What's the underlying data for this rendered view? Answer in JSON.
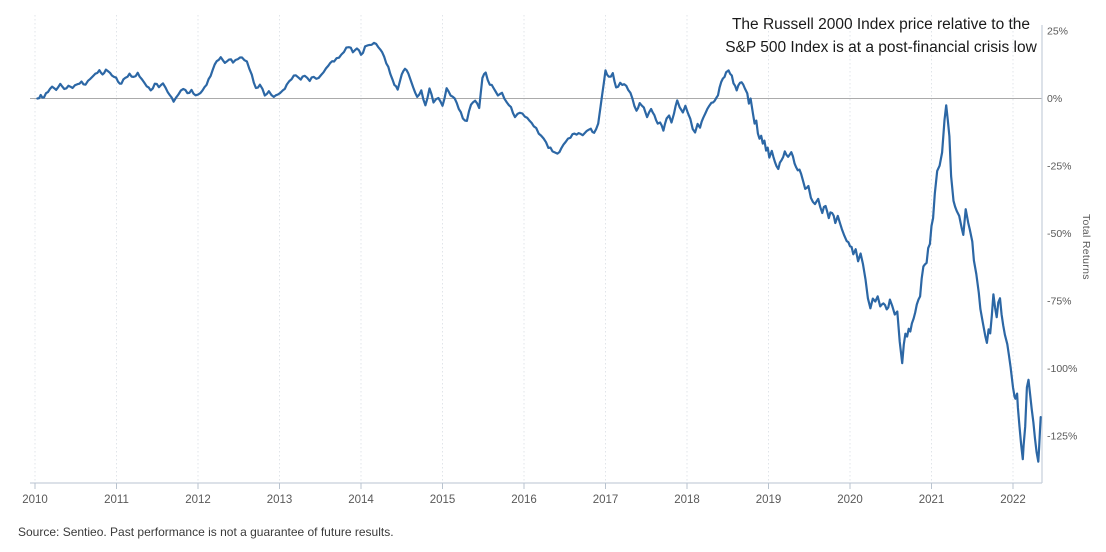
{
  "title": {
    "line1": "The Russell 2000 Index price relative to the",
    "line2": "S&P 500 Index is at a post-financial crisis low"
  },
  "source_note": "Source: Sentieo. Past performance is not a guarantee of future results.",
  "colors": {
    "line": "#2c67a5",
    "axis": "#c6cfda",
    "zero_line": "#ababab",
    "gridline": "#e0e4e9",
    "tick": "#b9c3cf",
    "axis_text": "#595959",
    "title_text": "#1a1a1a",
    "source_text": "#3a3a3a",
    "background": "#ffffff"
  },
  "chart_data": {
    "type": "line",
    "series_name": "Russell 2000 Index price relative to S&P 500 Index",
    "title": "The Russell 2000 Index price relative to the S&P 500 Index is at a post-financial crisis low",
    "xlabel": "",
    "ylabel": "Total Returns",
    "x_axis": {
      "ticks": [
        2010,
        2011,
        2012,
        2013,
        2014,
        2015,
        2016,
        2017,
        2018,
        2019,
        2020,
        2021,
        2022
      ],
      "tick_labels": [
        "2010",
        "2011",
        "2012",
        "2013",
        "2014",
        "2015",
        "2016",
        "2017",
        "2018",
        "2019",
        "2020",
        "2021",
        "2022"
      ],
      "range": [
        2009.94,
        2022.45
      ]
    },
    "y_axis": {
      "label": "Total Returns",
      "tick_values": [
        25,
        0,
        -25,
        -50,
        -75,
        -100,
        -125
      ],
      "tick_labels": [
        "25%",
        "0%",
        "-25%",
        "-50%",
        "-75%",
        "-100%",
        "-125%"
      ],
      "range": [
        -140,
        27
      ],
      "zero_line": true
    },
    "grid": {
      "vertical_dotted": true,
      "horizontal": false
    },
    "legend_position": "none",
    "points": [
      [
        2010.03,
        0.0
      ],
      [
        2010.07,
        1.3
      ],
      [
        2010.11,
        0.4
      ],
      [
        2010.16,
        2.4
      ],
      [
        2010.21,
        4.4
      ],
      [
        2010.26,
        3.2
      ],
      [
        2010.31,
        5.4
      ],
      [
        2010.36,
        3.5
      ],
      [
        2010.41,
        4.7
      ],
      [
        2010.46,
        3.9
      ],
      [
        2010.52,
        5.3
      ],
      [
        2010.57,
        6.3
      ],
      [
        2010.62,
        5.1
      ],
      [
        2010.68,
        7.3
      ],
      [
        2010.74,
        9.2
      ],
      [
        2010.79,
        10.5
      ],
      [
        2010.83,
        8.9
      ],
      [
        2010.87,
        10.7
      ],
      [
        2010.92,
        9.5
      ],
      [
        2010.97,
        8.0
      ],
      [
        2011.02,
        6.2
      ],
      [
        2011.06,
        5.5
      ],
      [
        2011.11,
        7.7
      ],
      [
        2011.16,
        9.2
      ],
      [
        2011.21,
        8.0
      ],
      [
        2011.26,
        9.5
      ],
      [
        2011.31,
        7.2
      ],
      [
        2011.37,
        4.5
      ],
      [
        2011.42,
        3.0
      ],
      [
        2011.47,
        5.5
      ],
      [
        2011.52,
        4.2
      ],
      [
        2011.57,
        5.6
      ],
      [
        2011.63,
        2.3
      ],
      [
        2011.7,
        -1.2
      ],
      [
        2011.76,
        1.5
      ],
      [
        2011.82,
        3.5
      ],
      [
        2011.87,
        2.0
      ],
      [
        2011.92,
        3.2
      ],
      [
        2011.97,
        1.2
      ],
      [
        2012.03,
        2.0
      ],
      [
        2012.08,
        4.2
      ],
      [
        2012.13,
        7.2
      ],
      [
        2012.18,
        10.6
      ],
      [
        2012.23,
        13.8
      ],
      [
        2012.28,
        15.3
      ],
      [
        2012.33,
        13.2
      ],
      [
        2012.38,
        14.4
      ],
      [
        2012.43,
        13.3
      ],
      [
        2012.49,
        14.6
      ],
      [
        2012.54,
        15.2
      ],
      [
        2012.6,
        13.7
      ],
      [
        2012.66,
        8.8
      ],
      [
        2012.71,
        3.9
      ],
      [
        2012.76,
        5.1
      ],
      [
        2012.82,
        1.1
      ],
      [
        2012.87,
        2.7
      ],
      [
        2012.93,
        0.6
      ],
      [
        2012.98,
        1.5
      ],
      [
        2013.04,
        3.0
      ],
      [
        2013.09,
        5.2
      ],
      [
        2013.15,
        7.2
      ],
      [
        2013.2,
        8.6
      ],
      [
        2013.26,
        7.0
      ],
      [
        2013.31,
        8.4
      ],
      [
        2013.37,
        6.5
      ],
      [
        2013.42,
        8.0
      ],
      [
        2013.48,
        7.6
      ],
      [
        2013.54,
        9.7
      ],
      [
        2013.6,
        12.2
      ],
      [
        2013.67,
        13.7
      ],
      [
        2013.73,
        15.1
      ],
      [
        2013.79,
        17.2
      ],
      [
        2013.85,
        19.0
      ],
      [
        2013.9,
        17.1
      ],
      [
        2013.95,
        18.5
      ],
      [
        2014.0,
        16.2
      ],
      [
        2014.05,
        19.3
      ],
      [
        2014.1,
        19.8
      ],
      [
        2014.16,
        20.6
      ],
      [
        2014.21,
        19.1
      ],
      [
        2014.26,
        17.1
      ],
      [
        2014.31,
        13.0
      ],
      [
        2014.36,
        9.1
      ],
      [
        2014.41,
        5.0
      ],
      [
        2014.45,
        3.3
      ],
      [
        2014.5,
        9.0
      ],
      [
        2014.54,
        11.0
      ],
      [
        2014.58,
        9.3
      ],
      [
        2014.64,
        4.1
      ],
      [
        2014.69,
        0.6
      ],
      [
        2014.74,
        3.0
      ],
      [
        2014.79,
        -2.5
      ],
      [
        2014.84,
        3.7
      ],
      [
        2014.89,
        -1.5
      ],
      [
        2014.95,
        0.2
      ],
      [
        2015.0,
        -2.7
      ],
      [
        2015.05,
        3.8
      ],
      [
        2015.1,
        1.1
      ],
      [
        2015.15,
        0.0
      ],
      [
        2015.2,
        -3.9
      ],
      [
        2015.25,
        -7.4
      ],
      [
        2015.3,
        -8.3
      ],
      [
        2015.35,
        -2.3
      ],
      [
        2015.4,
        -0.8
      ],
      [
        2015.45,
        -3.5
      ],
      [
        2015.49,
        7.6
      ],
      [
        2015.53,
        9.6
      ],
      [
        2015.58,
        5.1
      ],
      [
        2015.63,
        3.7
      ],
      [
        2015.68,
        1.1
      ],
      [
        2015.73,
        2.1
      ],
      [
        2015.79,
        -1.5
      ],
      [
        2015.84,
        -3.2
      ],
      [
        2015.89,
        -6.9
      ],
      [
        2015.95,
        -5.3
      ],
      [
        2016.01,
        -6.7
      ],
      [
        2016.07,
        -8.3
      ],
      [
        2016.12,
        -10.3
      ],
      [
        2016.18,
        -13.0
      ],
      [
        2016.24,
        -14.8
      ],
      [
        2016.3,
        -18.3
      ],
      [
        2016.35,
        -19.6
      ],
      [
        2016.41,
        -20.4
      ],
      [
        2016.46,
        -18.3
      ],
      [
        2016.51,
        -16.1
      ],
      [
        2016.57,
        -14.5
      ],
      [
        2016.62,
        -13.0
      ],
      [
        2016.67,
        -12.8
      ],
      [
        2016.72,
        -13.6
      ],
      [
        2016.77,
        -12.0
      ],
      [
        2016.82,
        -11.2
      ],
      [
        2016.86,
        -12.7
      ],
      [
        2016.91,
        -9.3
      ],
      [
        2016.96,
        1.5
      ],
      [
        2017.0,
        10.4
      ],
      [
        2017.04,
        8.1
      ],
      [
        2017.09,
        9.4
      ],
      [
        2017.13,
        4.1
      ],
      [
        2017.18,
        5.8
      ],
      [
        2017.23,
        5.3
      ],
      [
        2017.28,
        3.1
      ],
      [
        2017.33,
        0.0
      ],
      [
        2017.38,
        -4.5
      ],
      [
        2017.42,
        -1.7
      ],
      [
        2017.47,
        -3.3
      ],
      [
        2017.51,
        -6.9
      ],
      [
        2017.56,
        -3.9
      ],
      [
        2017.6,
        -6.2
      ],
      [
        2017.64,
        -9.3
      ],
      [
        2017.67,
        -8.9
      ],
      [
        2017.71,
        -11.9
      ],
      [
        2017.75,
        -7.4
      ],
      [
        2017.78,
        -6.3
      ],
      [
        2017.81,
        -8.9
      ],
      [
        2017.84,
        -5.6
      ],
      [
        2017.88,
        -0.7
      ],
      [
        2017.91,
        -3.3
      ],
      [
        2017.95,
        -5.2
      ],
      [
        2017.98,
        -2.7
      ],
      [
        2018.01,
        -5.3
      ],
      [
        2018.04,
        -7.5
      ],
      [
        2018.07,
        -11.3
      ],
      [
        2018.1,
        -12.6
      ],
      [
        2018.13,
        -9.4
      ],
      [
        2018.16,
        -10.8
      ],
      [
        2018.2,
        -7.1
      ],
      [
        2018.25,
        -3.8
      ],
      [
        2018.3,
        -1.6
      ],
      [
        2018.34,
        -0.8
      ],
      [
        2018.38,
        1.2
      ],
      [
        2018.4,
        4.1
      ],
      [
        2018.44,
        7.4
      ],
      [
        2018.48,
        9.7
      ],
      [
        2018.51,
        10.4
      ],
      [
        2018.55,
        8.5
      ],
      [
        2018.57,
        5.6
      ],
      [
        2018.61,
        3.0
      ],
      [
        2018.63,
        4.8
      ],
      [
        2018.67,
        6.0
      ],
      [
        2018.71,
        3.7
      ],
      [
        2018.74,
        1.9
      ],
      [
        2018.76,
        -1.9
      ],
      [
        2018.78,
        0.0
      ],
      [
        2018.81,
        -5.7
      ],
      [
        2018.83,
        -9.3
      ],
      [
        2018.85,
        -8.2
      ],
      [
        2018.87,
        -13.0
      ],
      [
        2018.89,
        -14.9
      ],
      [
        2018.91,
        -13.8
      ],
      [
        2018.93,
        -16.7
      ],
      [
        2018.95,
        -15.6
      ],
      [
        2018.97,
        -19.3
      ],
      [
        2018.99,
        -18.2
      ],
      [
        2019.01,
        -21.9
      ],
      [
        2019.04,
        -19.4
      ],
      [
        2019.08,
        -23.6
      ],
      [
        2019.12,
        -26.1
      ],
      [
        2019.16,
        -22.9
      ],
      [
        2019.2,
        -19.6
      ],
      [
        2019.24,
        -21.6
      ],
      [
        2019.28,
        -19.9
      ],
      [
        2019.32,
        -24.1
      ],
      [
        2019.36,
        -26.6
      ],
      [
        2019.4,
        -27.9
      ],
      [
        2019.45,
        -33.5
      ],
      [
        2019.49,
        -32.4
      ],
      [
        2019.52,
        -36.8
      ],
      [
        2019.57,
        -39.1
      ],
      [
        2019.61,
        -37.2
      ],
      [
        2019.66,
        -42.4
      ],
      [
        2019.7,
        -39.8
      ],
      [
        2019.74,
        -44.3
      ],
      [
        2019.78,
        -42.4
      ],
      [
        2019.82,
        -46.1
      ],
      [
        2019.85,
        -43.5
      ],
      [
        2019.9,
        -48.4
      ],
      [
        2019.96,
        -52.8
      ],
      [
        2020.0,
        -54.7
      ],
      [
        2020.04,
        -57.7
      ],
      [
        2020.07,
        -55.8
      ],
      [
        2020.1,
        -60.3
      ],
      [
        2020.13,
        -57.4
      ],
      [
        2020.16,
        -61.4
      ],
      [
        2020.19,
        -67.0
      ],
      [
        2020.22,
        -74.0
      ],
      [
        2020.25,
        -77.7
      ],
      [
        2020.28,
        -74.1
      ],
      [
        2020.31,
        -75.2
      ],
      [
        2020.34,
        -73.3
      ],
      [
        2020.37,
        -77.0
      ],
      [
        2020.41,
        -75.9
      ],
      [
        2020.45,
        -78.1
      ],
      [
        2020.49,
        -74.5
      ],
      [
        2020.52,
        -77.0
      ],
      [
        2020.55,
        -80.0
      ],
      [
        2020.58,
        -78.9
      ],
      [
        2020.61,
        -90.0
      ],
      [
        2020.64,
        -98.0
      ],
      [
        2020.66,
        -91.1
      ],
      [
        2020.68,
        -87.1
      ],
      [
        2020.7,
        -88.2
      ],
      [
        2020.72,
        -85.3
      ],
      [
        2020.74,
        -86.3
      ],
      [
        2020.78,
        -81.5
      ],
      [
        2020.82,
        -76.3
      ],
      [
        2020.86,
        -73.3
      ],
      [
        2020.9,
        -62.2
      ],
      [
        2020.92,
        -61.4
      ],
      [
        2020.94,
        -60.9
      ],
      [
        2020.96,
        -55.4
      ],
      [
        2020.98,
        -53.9
      ],
      [
        2021.0,
        -47.2
      ],
      [
        2021.02,
        -44.3
      ],
      [
        2021.04,
        -35.3
      ],
      [
        2021.07,
        -26.8
      ],
      [
        2021.1,
        -24.9
      ],
      [
        2021.13,
        -20.0
      ],
      [
        2021.16,
        -8.0
      ],
      [
        2021.18,
        -2.5
      ],
      [
        2021.2,
        -8.0
      ],
      [
        2021.22,
        -14.0
      ],
      [
        2021.24,
        -28.7
      ],
      [
        2021.27,
        -37.9
      ],
      [
        2021.31,
        -41.7
      ],
      [
        2021.34,
        -43.5
      ],
      [
        2021.37,
        -48.0
      ],
      [
        2021.39,
        -50.5
      ],
      [
        2021.42,
        -41.0
      ],
      [
        2021.45,
        -46.0
      ],
      [
        2021.47,
        -48.5
      ],
      [
        2021.5,
        -53.0
      ],
      [
        2021.52,
        -60.0
      ],
      [
        2021.55,
        -65.0
      ],
      [
        2021.58,
        -72.0
      ],
      [
        2021.6,
        -78.0
      ],
      [
        2021.63,
        -83.0
      ],
      [
        2021.66,
        -88.0
      ],
      [
        2021.68,
        -90.5
      ],
      [
        2021.7,
        -85.5
      ],
      [
        2021.72,
        -87.0
      ],
      [
        2021.74,
        -80.5
      ],
      [
        2021.76,
        -72.5
      ],
      [
        2021.78,
        -77.5
      ],
      [
        2021.8,
        -81.0
      ],
      [
        2021.82,
        -75.5
      ],
      [
        2021.84,
        -74.0
      ],
      [
        2021.86,
        -80.0
      ],
      [
        2021.88,
        -84.0
      ],
      [
        2021.9,
        -87.5
      ],
      [
        2021.93,
        -91.0
      ],
      [
        2021.95,
        -95.0
      ],
      [
        2021.97,
        -99.5
      ],
      [
        2022.0,
        -107.0
      ],
      [
        2022.02,
        -110.5
      ],
      [
        2022.03,
        -111.2
      ],
      [
        2022.05,
        -109.3
      ],
      [
        2022.06,
        -114.5
      ],
      [
        2022.08,
        -121.5
      ],
      [
        2022.1,
        -128.0
      ],
      [
        2022.12,
        -133.6
      ],
      [
        2022.13,
        -128.5
      ],
      [
        2022.15,
        -121.5
      ],
      [
        2022.17,
        -107.0
      ],
      [
        2022.19,
        -104.2
      ],
      [
        2022.21,
        -109.5
      ],
      [
        2022.23,
        -115.0
      ],
      [
        2022.25,
        -120.0
      ],
      [
        2022.27,
        -126.0
      ],
      [
        2022.29,
        -131.0
      ],
      [
        2022.31,
        -134.5
      ],
      [
        2022.32,
        -129.5
      ],
      [
        2022.33,
        -123.5
      ],
      [
        2022.34,
        -118.0
      ]
    ]
  }
}
